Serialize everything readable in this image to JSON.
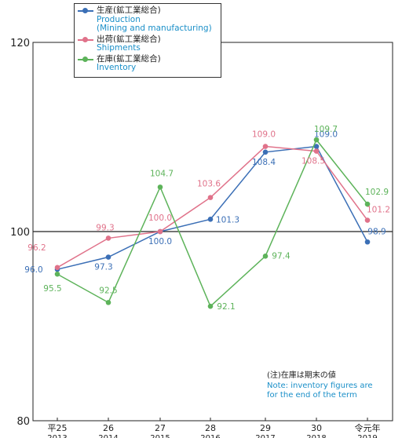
{
  "chart_data": {
    "type": "line",
    "categories": [
      {
        "top": "平25",
        "bottom": "2013"
      },
      {
        "top": "26",
        "bottom": "2014"
      },
      {
        "top": "27",
        "bottom": "2015"
      },
      {
        "top": "28",
        "bottom": "2016"
      },
      {
        "top": "29",
        "bottom": "2017"
      },
      {
        "top": "30",
        "bottom": "2018"
      },
      {
        "top": "令元年",
        "bottom": "2019"
      }
    ],
    "yticks": [
      "120",
      "100",
      "80"
    ],
    "ylim": [
      80,
      120
    ],
    "baseline": 100,
    "series": [
      {
        "name": "生産(鉱工業総合)",
        "name_en_line1": "Production",
        "name_en_line2": "(Mining and manufacturing)",
        "color": "#3b6fb6",
        "values": [
          96.0,
          97.3,
          100.0,
          101.3,
          108.4,
          109.0,
          98.9
        ],
        "labels": [
          "96.0",
          "97.3",
          "100.0",
          "101.3",
          "108.4",
          "109.0",
          "98.9"
        ]
      },
      {
        "name": "出荷(鉱工業総合)",
        "name_en_line1": "Shipments",
        "color": "#e0728a",
        "values": [
          96.2,
          99.3,
          100.0,
          103.6,
          109.0,
          108.5,
          101.2
        ],
        "labels": [
          "96.2",
          "99.3",
          "100.0",
          "103.6",
          "109.0",
          "108.5",
          "101.2"
        ]
      },
      {
        "name": "在庫(鉱工業総合)",
        "name_en_line1": "Inventory",
        "color": "#5db35a",
        "values": [
          95.5,
          92.5,
          104.7,
          92.1,
          97.4,
          109.7,
          102.9
        ],
        "labels": [
          "95.5",
          "92.5",
          "104.7",
          "92.1",
          "97.4",
          "109.7",
          "102.9"
        ]
      }
    ],
    "note": {
      "jp": "(注)在庫は期末の値",
      "en_line1": "Note: inventory figures are",
      "en_line2": "for the end of the term"
    }
  }
}
